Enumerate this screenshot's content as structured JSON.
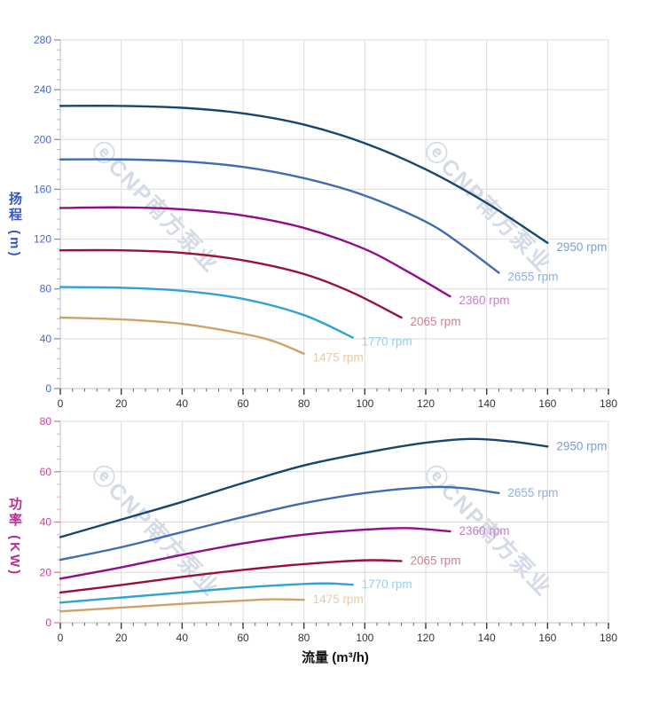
{
  "watermark": {
    "text": "ⓔCNP南方泵业"
  },
  "x_axis": {
    "title": "流量 (m³/h)",
    "min": 0,
    "max": 180,
    "ticks": [
      0,
      20,
      40,
      60,
      80,
      100,
      120,
      140,
      160,
      180
    ],
    "minor_step": 4,
    "tick_label_color": "#333333"
  },
  "chart_data": [
    {
      "type": "line",
      "name": "head-vs-flow",
      "y_axis_title": "扬程 (m)",
      "y_axis_title_color": "#3558c8",
      "tick_label_color": "#4a69c8",
      "tick_mark_color": "#7c92d8",
      "y_axis": {
        "min": 0,
        "max": 280,
        "ticks": [
          0,
          40,
          80,
          120,
          160,
          200,
          240,
          280
        ],
        "minor_step": 8
      },
      "series": [
        {
          "name": "2950 rpm",
          "color": "#17476f",
          "label_color": "#7f9ec7",
          "points": [
            [
              0,
              227
            ],
            [
              20,
              227
            ],
            [
              40,
              225.5
            ],
            [
              60,
              221
            ],
            [
              80,
              212
            ],
            [
              100,
              197
            ],
            [
              120,
              176
            ],
            [
              140,
              149
            ],
            [
              160,
              117
            ]
          ]
        },
        {
          "name": "2655 rpm",
          "color": "#3f6cb4",
          "label_color": "#8fb0e0",
          "points": [
            [
              0,
              184
            ],
            [
              20,
              184
            ],
            [
              40,
              182.5
            ],
            [
              60,
              178
            ],
            [
              80,
              169
            ],
            [
              100,
              155
            ],
            [
              120,
              134
            ],
            [
              132,
              115
            ],
            [
              144,
              93
            ]
          ]
        },
        {
          "name": "2360 rpm",
          "color": "#910d8e",
          "label_color": "#c77fc9",
          "points": [
            [
              0,
              145
            ],
            [
              20,
              145.5
            ],
            [
              40,
              144
            ],
            [
              60,
              139
            ],
            [
              80,
              129
            ],
            [
              100,
              112
            ],
            [
              114,
              94
            ],
            [
              128,
              74
            ]
          ]
        },
        {
          "name": "2065 rpm",
          "color": "#9a1136",
          "label_color": "#c98490",
          "points": [
            [
              0,
              111
            ],
            [
              20,
              111
            ],
            [
              40,
              109
            ],
            [
              60,
              103
            ],
            [
              80,
              92
            ],
            [
              96,
              77
            ],
            [
              112,
              57
            ]
          ]
        },
        {
          "name": "1770 rpm",
          "color": "#31a2d8",
          "label_color": "#93cff0",
          "points": [
            [
              0,
              81.5
            ],
            [
              20,
              81
            ],
            [
              40,
              78.5
            ],
            [
              60,
              72
            ],
            [
              80,
              59
            ],
            [
              96,
              41
            ]
          ]
        },
        {
          "name": "1475 rpm",
          "color": "#d0a167",
          "label_color": "#e8cba4",
          "points": [
            [
              0,
              57
            ],
            [
              20,
              55.5
            ],
            [
              40,
              52
            ],
            [
              60,
              44
            ],
            [
              70,
              38
            ],
            [
              80,
              28
            ]
          ]
        }
      ]
    },
    {
      "type": "line",
      "name": "power-vs-flow",
      "y_axis_title": "功率 (KW)",
      "y_axis_title_color": "#b53093",
      "tick_label_color": "#c9439a",
      "tick_mark_color": "#d977b4",
      "y_axis": {
        "min": 0,
        "max": 80,
        "ticks": [
          0,
          20,
          40,
          60,
          80
        ],
        "minor_step": 5
      },
      "series": [
        {
          "name": "2950 rpm",
          "color": "#17476f",
          "label_color": "#7f9ec7",
          "points": [
            [
              0,
              34
            ],
            [
              20,
              41
            ],
            [
              40,
              48
            ],
            [
              60,
              55.5
            ],
            [
              80,
              62.5
            ],
            [
              100,
              67.5
            ],
            [
              120,
              71.5
            ],
            [
              135,
              73
            ],
            [
              148,
              72
            ],
            [
              160,
              70
            ]
          ]
        },
        {
          "name": "2655 rpm",
          "color": "#3f6cb4",
          "label_color": "#8fb0e0",
          "points": [
            [
              0,
              25
            ],
            [
              20,
              30
            ],
            [
              40,
              36
            ],
            [
              60,
              42
            ],
            [
              80,
              47.5
            ],
            [
              100,
              51.5
            ],
            [
              120,
              53.8
            ],
            [
              132,
              53.5
            ],
            [
              144,
              51.5
            ]
          ]
        },
        {
          "name": "2360 rpm",
          "color": "#910d8e",
          "label_color": "#c77fc9",
          "points": [
            [
              0,
              17.5
            ],
            [
              20,
              22
            ],
            [
              40,
              27
            ],
            [
              60,
              31.5
            ],
            [
              80,
              35
            ],
            [
              100,
              37
            ],
            [
              114,
              37.6
            ],
            [
              128,
              36.3
            ]
          ]
        },
        {
          "name": "2065 rpm",
          "color": "#9a1136",
          "label_color": "#c98490",
          "points": [
            [
              0,
              12
            ],
            [
              20,
              15
            ],
            [
              40,
              18.2
            ],
            [
              60,
              21
            ],
            [
              80,
              23.3
            ],
            [
              100,
              24.8
            ],
            [
              112,
              24.5
            ]
          ]
        },
        {
          "name": "1770 rpm",
          "color": "#31a2d8",
          "label_color": "#93cff0",
          "points": [
            [
              0,
              8
            ],
            [
              20,
              10
            ],
            [
              40,
              12
            ],
            [
              60,
              14
            ],
            [
              80,
              15.4
            ],
            [
              88,
              15.6
            ],
            [
              96,
              15.1
            ]
          ]
        },
        {
          "name": "1475 rpm",
          "color": "#d0a167",
          "label_color": "#e8cba4",
          "points": [
            [
              0,
              4.5
            ],
            [
              20,
              6
            ],
            [
              40,
              7.5
            ],
            [
              60,
              8.8
            ],
            [
              70,
              9.3
            ],
            [
              80,
              9.1
            ]
          ]
        }
      ]
    }
  ]
}
